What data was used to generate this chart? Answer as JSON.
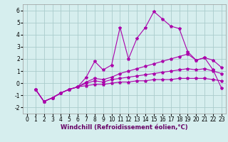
{
  "xlabel": "Windchill (Refroidissement éolien,°C)",
  "background_color": "#d6eeee",
  "grid_color": "#aacccc",
  "line_color": "#aa00aa",
  "xlim": [
    -0.5,
    23.5
  ],
  "ylim": [
    -2.5,
    6.5
  ],
  "xticks": [
    0,
    1,
    2,
    3,
    4,
    5,
    6,
    7,
    8,
    9,
    10,
    11,
    12,
    13,
    14,
    15,
    16,
    17,
    18,
    19,
    20,
    21,
    22,
    23
  ],
  "yticks": [
    -2,
    -1,
    0,
    1,
    2,
    3,
    4,
    5,
    6
  ],
  "line1_x": [
    1,
    2,
    3,
    4,
    5,
    6,
    7,
    8,
    9,
    10,
    11,
    12,
    13,
    14,
    15,
    16,
    17,
    18,
    19,
    20,
    21,
    22,
    23
  ],
  "line1_y": [
    -0.5,
    -1.5,
    -1.2,
    -0.8,
    -0.5,
    -0.3,
    0.5,
    1.8,
    1.1,
    1.5,
    4.6,
    2.0,
    3.7,
    4.6,
    5.9,
    5.3,
    4.7,
    4.5,
    2.6,
    1.9,
    2.1,
    1.1,
    -0.4
  ],
  "line2_x": [
    1,
    2,
    3,
    4,
    5,
    6,
    7,
    8,
    9,
    10,
    11,
    12,
    13,
    14,
    15,
    16,
    17,
    18,
    19,
    20,
    21,
    22,
    23
  ],
  "line2_y": [
    -0.5,
    -1.5,
    -1.2,
    -0.8,
    -0.5,
    -0.3,
    0.1,
    0.4,
    0.3,
    0.5,
    0.8,
    1.0,
    1.2,
    1.4,
    1.6,
    1.8,
    2.0,
    2.2,
    2.4,
    1.9,
    2.1,
    1.9,
    1.3
  ],
  "line3_x": [
    1,
    2,
    3,
    4,
    5,
    6,
    7,
    8,
    9,
    10,
    11,
    12,
    13,
    14,
    15,
    16,
    17,
    18,
    19,
    20,
    21,
    22,
    23
  ],
  "line3_y": [
    -0.5,
    -1.5,
    -1.2,
    -0.8,
    -0.5,
    -0.3,
    0.0,
    0.2,
    0.1,
    0.3,
    0.4,
    0.5,
    0.6,
    0.7,
    0.8,
    0.9,
    1.0,
    1.1,
    1.2,
    1.1,
    1.2,
    1.0,
    0.8
  ],
  "line4_x": [
    1,
    2,
    3,
    4,
    5,
    6,
    7,
    8,
    9,
    10,
    11,
    12,
    13,
    14,
    15,
    16,
    17,
    18,
    19,
    20,
    21,
    22,
    23
  ],
  "line4_y": [
    -0.5,
    -1.5,
    -1.2,
    -0.8,
    -0.5,
    -0.3,
    -0.2,
    -0.1,
    -0.1,
    0.0,
    0.1,
    0.1,
    0.2,
    0.2,
    0.3,
    0.3,
    0.3,
    0.4,
    0.4,
    0.4,
    0.4,
    0.3,
    0.2
  ],
  "marker": "*",
  "marker_size": 3,
  "line_width": 0.8,
  "xlabel_fontsize": 6,
  "tick_fontsize": 5.5
}
